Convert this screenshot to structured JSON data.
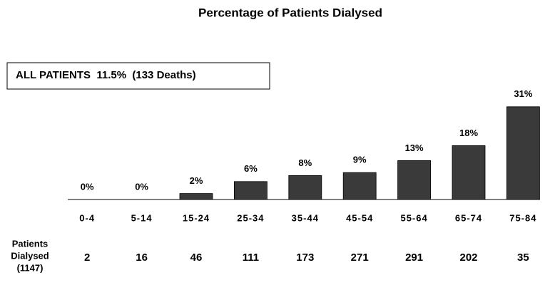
{
  "chart_data": {
    "type": "bar",
    "title": "Percentage of Patients Dialysed",
    "annotation": "ALL PATIENTS  11.5%  (133 Deaths)",
    "categories": [
      "0-4",
      "5-14",
      "15-24",
      "25-34",
      "35-44",
      "45-54",
      "55-64",
      "65-74",
      "75-84"
    ],
    "values": [
      0,
      0,
      2,
      6,
      8,
      9,
      13,
      18,
      31
    ],
    "value_labels": [
      "0%",
      "0%",
      "2%",
      "6%",
      "8%",
      "9%",
      "13%",
      "18%",
      "31%"
    ],
    "color": "#3a3a3a",
    "row_label": [
      "Patients",
      "Dialysed",
      "(1147)"
    ],
    "row_values": [
      2,
      16,
      46,
      111,
      173,
      271,
      291,
      202,
      35
    ]
  }
}
